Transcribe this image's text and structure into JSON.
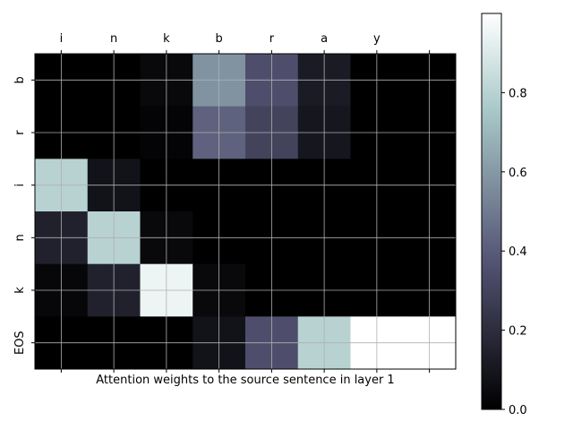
{
  "chart_data": {
    "type": "heatmap",
    "xlabel": "Attention weights to the source sentence in layer 1",
    "x_tick_labels": [
      "i",
      "n",
      "k",
      "b",
      "r",
      "a",
      "y",
      ""
    ],
    "y_tick_labels": [
      "b",
      "r",
      "i",
      "n",
      "k",
      "EOS"
    ],
    "columns_shown": 8,
    "values": [
      [
        0.0,
        0.0,
        0.04,
        0.58,
        0.35,
        0.12,
        0.0,
        0.0
      ],
      [
        0.0,
        0.0,
        0.02,
        0.42,
        0.3,
        0.1,
        0.0,
        0.0
      ],
      [
        0.8,
        0.08,
        0.0,
        0.0,
        0.0,
        0.0,
        0.0,
        0.0
      ],
      [
        0.15,
        0.8,
        0.04,
        0.0,
        0.0,
        0.0,
        0.0,
        0.0
      ],
      [
        0.03,
        0.15,
        0.95,
        0.04,
        0.0,
        0.0,
        0.0,
        0.0
      ],
      [
        0.0,
        0.0,
        0.0,
        0.08,
        0.35,
        0.8,
        1.0,
        1.0
      ]
    ],
    "colorbar": {
      "colormap": "bone",
      "range": [
        0.0,
        1.0
      ],
      "ticks": [
        0.0,
        0.2,
        0.4,
        0.6,
        0.8
      ],
      "tick_labels": [
        "0.0",
        "0.2",
        "0.4",
        "0.6",
        "0.8"
      ]
    },
    "x_axis_position": "top",
    "grid": true,
    "legend": "none"
  }
}
